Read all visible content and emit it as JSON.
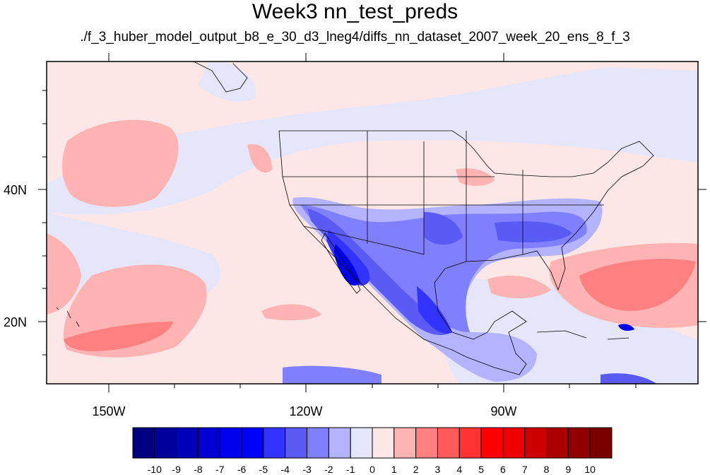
{
  "title": "Week3 nn_test_preds",
  "subtitle": "./f_3_huber_model_output_b8_e_30_d3_lneg4/diffs_nn_dataset_2007_week_20_ens_8_f_3",
  "map": {
    "lon_range": [
      -160,
      -62
    ],
    "lat_range": [
      10,
      58
    ],
    "lon_ticks": [
      "150W",
      "120W",
      "90W"
    ],
    "lat_ticks": [
      "40N",
      "20N"
    ],
    "background_color": "#fde6e6"
  },
  "colorbar": {
    "labels": [
      "-10",
      "-9",
      "-8",
      "-7",
      "-6",
      "-5",
      "-4",
      "-3",
      "-2",
      "-1",
      "0",
      "1",
      "2",
      "3",
      "4",
      "5",
      "6",
      "7",
      "8",
      "9",
      "10"
    ],
    "colors": [
      "#000080",
      "#00009c",
      "#0000b8",
      "#0000d4",
      "#0000ee",
      "#0000ff",
      "#3333ff",
      "#5a5af5",
      "#8080ff",
      "#b3b3ff",
      "#e6e6fa",
      "#fde6e6",
      "#ffb3b3",
      "#ff8080",
      "#ff5a5a",
      "#ff3333",
      "#ff0000",
      "#ee0000",
      "#cc0000",
      "#aa0000",
      "#900000",
      "#7a0000"
    ]
  }
}
